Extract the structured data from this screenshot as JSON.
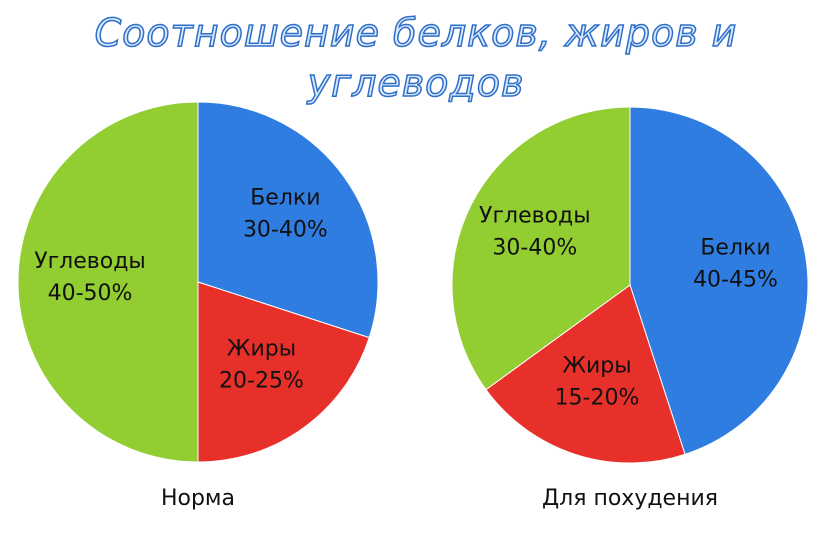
{
  "title": "Соотношение белков, жиров и углеводов",
  "chart_data": [
    {
      "type": "pie",
      "title": "Норма",
      "categories": [
        "Белки",
        "Жиры",
        "Углеводы"
      ],
      "values": [
        30,
        20,
        50
      ],
      "value_labels": [
        "30-40%",
        "20-25%",
        "40-50%"
      ],
      "colors": [
        "#2f7de1",
        "#e8302a",
        "#92cd32"
      ]
    },
    {
      "type": "pie",
      "title": "Для похудения",
      "categories": [
        "Белки",
        "Жиры",
        "Углеводы"
      ],
      "values": [
        45,
        20,
        35
      ],
      "value_labels": [
        "40-45%",
        "15-20%",
        "30-40%"
      ],
      "colors": [
        "#2f7de1",
        "#e8302a",
        "#92cd32"
      ]
    }
  ]
}
